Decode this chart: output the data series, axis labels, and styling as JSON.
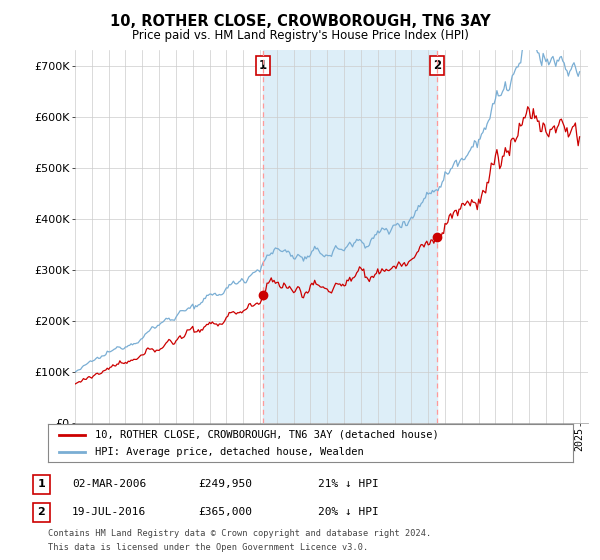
{
  "title": "10, ROTHER CLOSE, CROWBOROUGH, TN6 3AY",
  "subtitle": "Price paid vs. HM Land Registry's House Price Index (HPI)",
  "legend_label_red": "10, ROTHER CLOSE, CROWBOROUGH, TN6 3AY (detached house)",
  "legend_label_blue": "HPI: Average price, detached house, Wealden",
  "transaction1_date": "02-MAR-2006",
  "transaction1_price": 249950,
  "transaction1_year": 2006.17,
  "transaction2_date": "19-JUL-2016",
  "transaction2_price": 365000,
  "transaction2_year": 2016.54,
  "footnote1": "Contains HM Land Registry data © Crown copyright and database right 2024.",
  "footnote2": "This data is licensed under the Open Government Licence v3.0.",
  "ylim": [
    0,
    730000
  ],
  "red_color": "#cc0000",
  "blue_color": "#7aaed4",
  "shade_color": "#ddeef8",
  "background_color": "#ffffff",
  "grid_color": "#cccccc"
}
